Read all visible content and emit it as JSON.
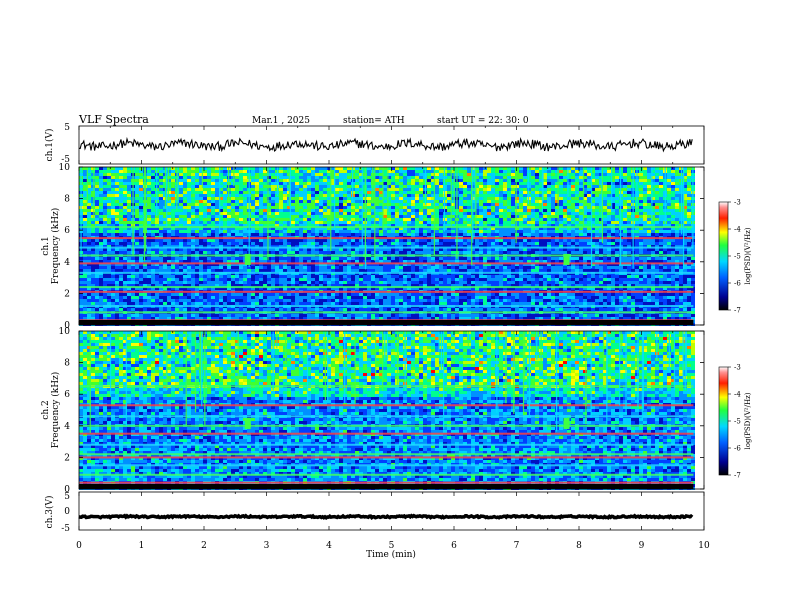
{
  "header": {
    "title": "VLF  Spectra",
    "date": "Mar.1  , 2025",
    "station": "station= ATH",
    "start": "start  UT  =   22: 30: 0"
  },
  "chart_data": [
    {
      "type": "line",
      "name": "ch1-waveform",
      "ylabel": "ch.1(V)",
      "ylim": [
        -5,
        5
      ],
      "y_ticks": [
        "5",
        "-5"
      ],
      "xlim": [
        0,
        10
      ],
      "description_values": {
        "mean": 0,
        "amplitude_approx": 1.2
      }
    },
    {
      "type": "heatmap",
      "name": "ch1-spectrogram",
      "ylabel": "ch.1\nFrequency  (kHz)",
      "ylabel_line1": "ch.1",
      "ylabel_line2": "Frequency  (kHz)",
      "ylim": [
        0,
        10
      ],
      "y_ticks": [
        "0",
        "2",
        "4",
        "6",
        "8",
        "10"
      ],
      "xlim": [
        0,
        10
      ],
      "colorbar": {
        "label": "log(PSD)(V²/Hz)",
        "range": [
          -7,
          -3
        ],
        "ticks": [
          "-3",
          "-4",
          "-5",
          "-6",
          "-7"
        ]
      },
      "bands_khz": [
        0.3,
        0.8,
        1.2,
        2.1,
        2.4,
        3.3,
        3.9,
        4.4,
        4.9,
        5.5,
        6.2
      ],
      "features": {
        "spike_minutes": [
          2.7,
          7.8
        ],
        "spike_band_khz": [
          3.8,
          4.5
        ]
      }
    },
    {
      "type": "heatmap",
      "name": "ch2-spectrogram",
      "ylabel_line1": "ch.2",
      "ylabel_line2": "Frequency  (kHz)",
      "ylim": [
        0,
        10
      ],
      "y_ticks": [
        "0",
        "2",
        "4",
        "6",
        "8",
        "10"
      ],
      "xlim": [
        0,
        10
      ],
      "colorbar": {
        "label": "log(PSD)(V²/Hz)",
        "range": [
          -7,
          -3
        ],
        "ticks": [
          "-3",
          "-4",
          "-5",
          "-6",
          "-7"
        ]
      },
      "bands_khz": [
        0.4,
        0.9,
        1.5,
        2.0,
        2.2,
        2.8,
        3.5,
        4.0,
        4.6,
        5.3,
        6.5
      ],
      "features": {
        "spike_minutes": [
          2.7,
          7.8
        ],
        "spike_band_khz": [
          3.8,
          4.5
        ]
      }
    },
    {
      "type": "line",
      "name": "ch3-waveform",
      "ylabel": "ch.3(V)",
      "ylim": [
        -5,
        5
      ],
      "y_ticks": [
        "5",
        "0",
        "-5"
      ],
      "xlim": [
        0,
        10
      ],
      "description_values": {
        "mean": -1.5,
        "amplitude_approx": 0.2
      }
    }
  ],
  "x_axis": {
    "label": "Time  (min)",
    "ticks": [
      "0",
      "1",
      "2",
      "3",
      "4",
      "5",
      "6",
      "7",
      "8",
      "9",
      "10"
    ],
    "data_end": 9.83
  },
  "colors": {
    "spec_low": "#000080",
    "spec_mid": "#00c8ff",
    "spec_high": "#ff0000",
    "trace": "#000000"
  }
}
